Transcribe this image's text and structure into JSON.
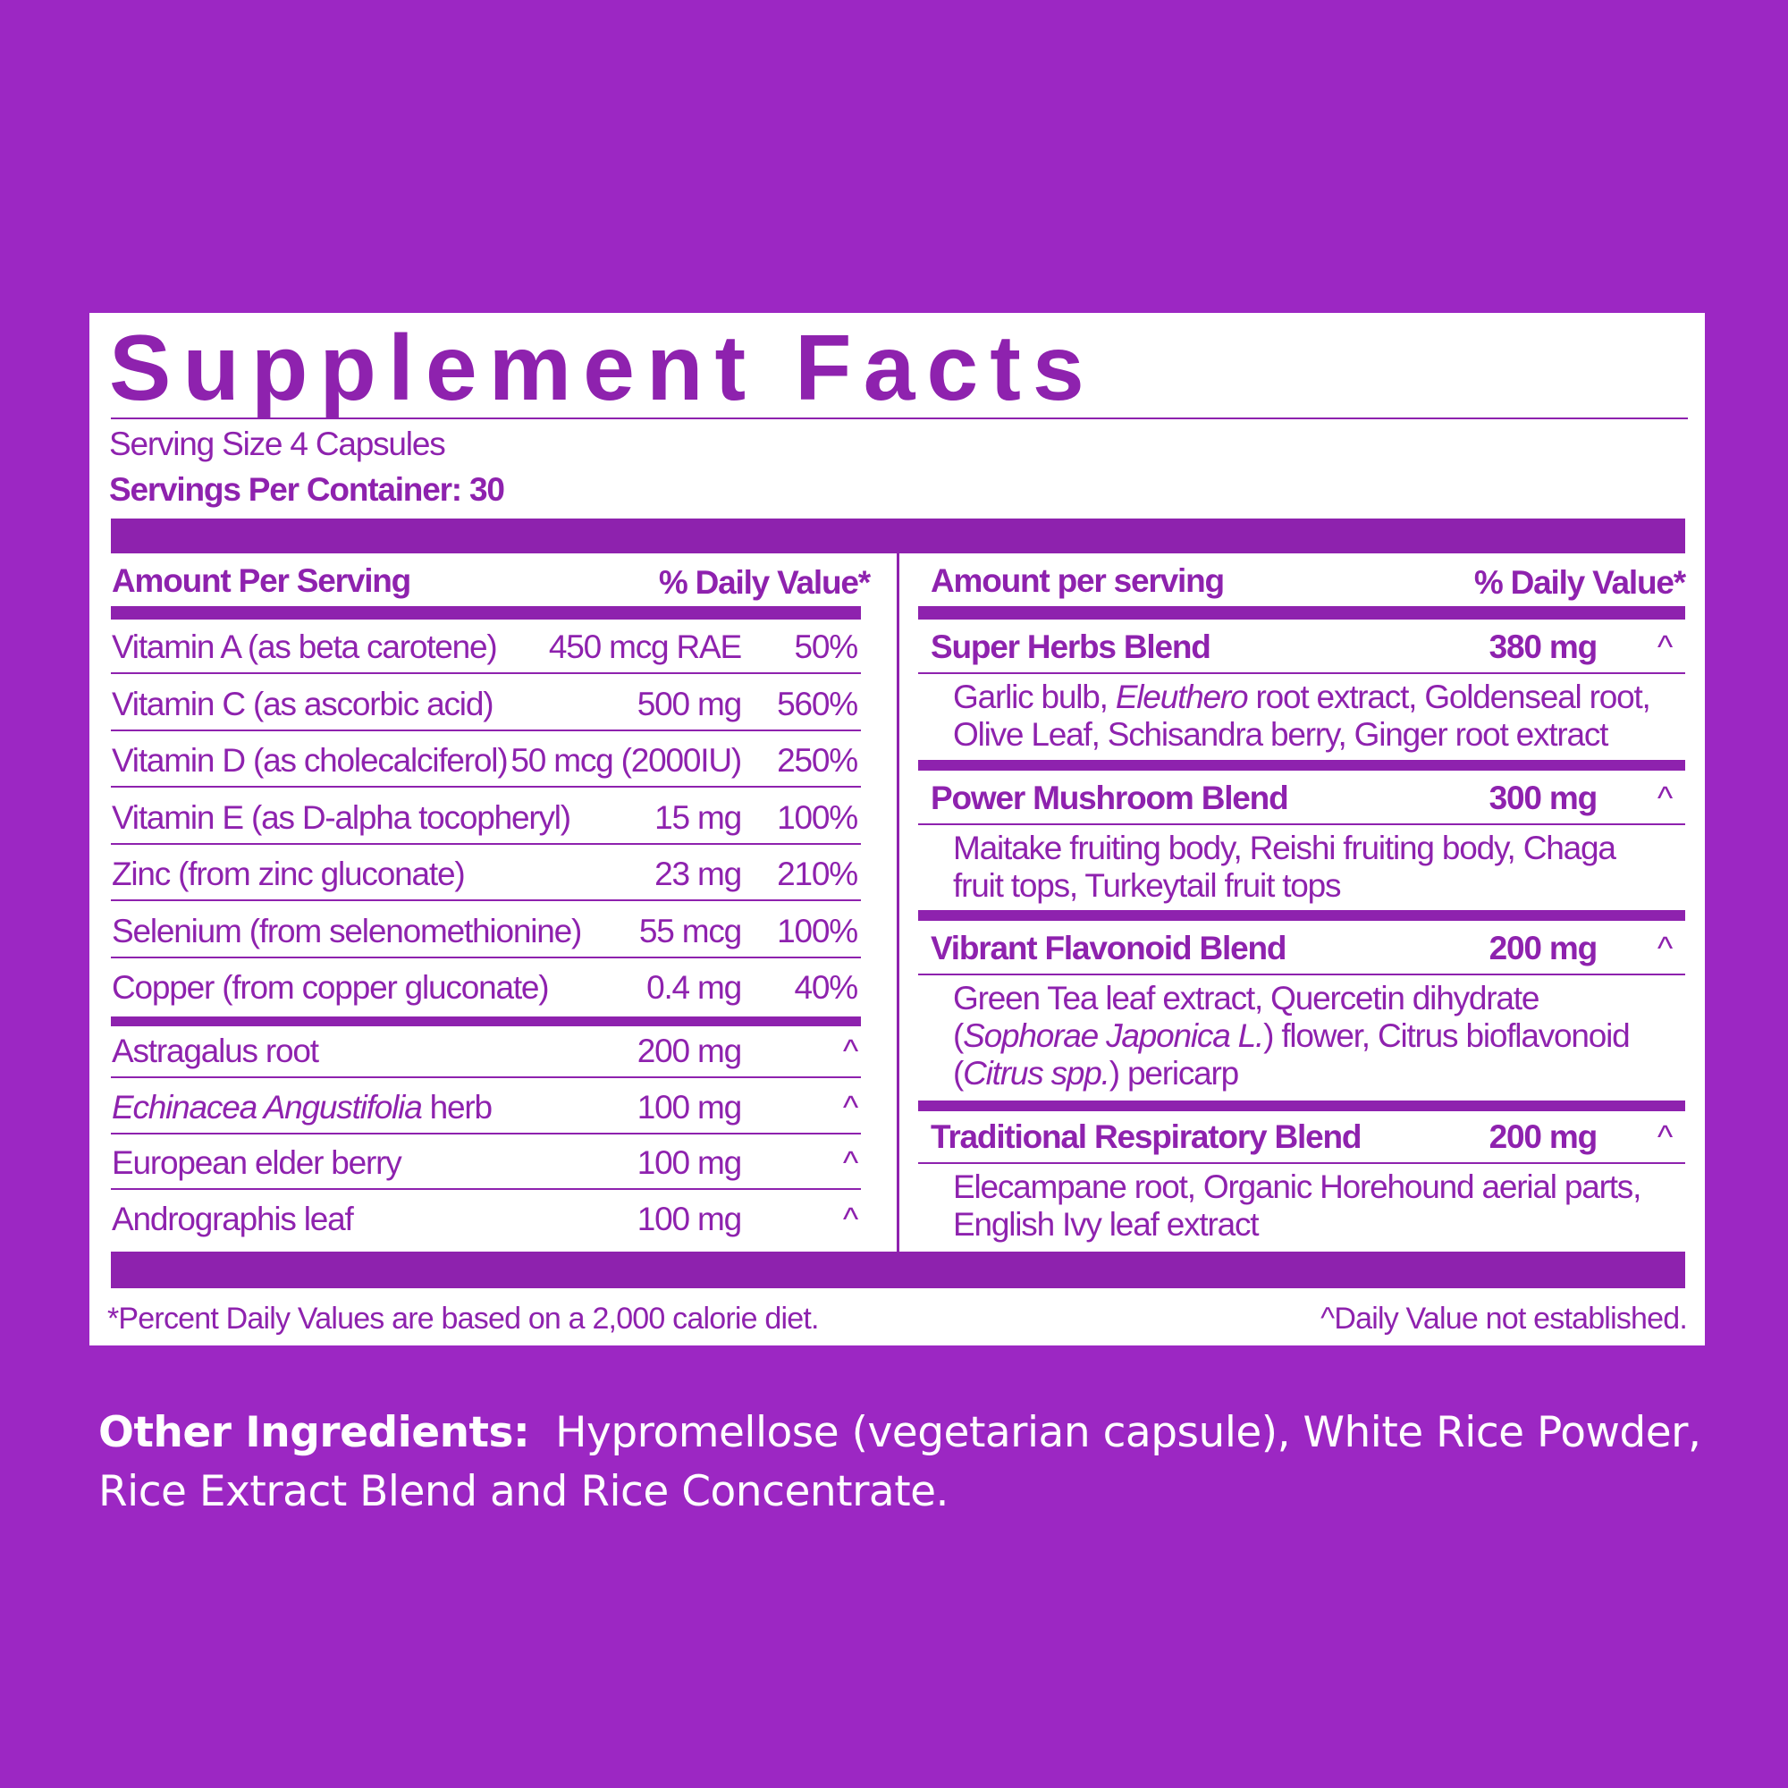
{
  "colors": {
    "background": "#9C27C3",
    "accent": "#8E22AE",
    "panel": "#FFFFFF"
  },
  "title": "Supplement Facts",
  "serving_size": "Serving Size 4 Capsules",
  "servings_per_container": "Servings Per Container: 30",
  "left": {
    "header_amount": "Amount Per Serving",
    "header_dv": "% Daily Value*",
    "vitamins": [
      {
        "name": [
          {
            "t": "Vitamin A (as beta carotene)"
          }
        ],
        "amount": "450 mcg RAE",
        "dv": "50%"
      },
      {
        "name": [
          {
            "t": "Vitamin C (as ascorbic acid)"
          }
        ],
        "amount": "500 mg",
        "dv": "560%"
      },
      {
        "name": [
          {
            "t": "Vitamin D (as cholecalciferol)"
          }
        ],
        "amount": "50 mcg (2000IU)",
        "dv": "250%"
      },
      {
        "name": [
          {
            "t": "Vitamin E (as D-alpha tocopheryl)"
          }
        ],
        "amount": "15 mg",
        "dv": "100%"
      },
      {
        "name": [
          {
            "t": "Zinc (from zinc gluconate)"
          }
        ],
        "amount": "23 mg",
        "dv": "210%"
      },
      {
        "name": [
          {
            "t": "Selenium (from selenomethionine)"
          }
        ],
        "amount": "55 mcg",
        "dv": "100%"
      },
      {
        "name": [
          {
            "t": "Copper (from copper gluconate)"
          }
        ],
        "amount": "0.4 mg",
        "dv": "40%"
      }
    ],
    "herbs": [
      {
        "name": [
          {
            "t": "Astragalus root"
          }
        ],
        "amount": "200 mg",
        "dv": "^"
      },
      {
        "name": [
          {
            "t": "Echinacea Angustifolia",
            "i": true
          },
          {
            "t": " herb"
          }
        ],
        "amount": "100 mg",
        "dv": "^"
      },
      {
        "name": [
          {
            "t": "European elder berry"
          }
        ],
        "amount": "100 mg",
        "dv": "^"
      },
      {
        "name": [
          {
            "t": "Andrographis leaf"
          }
        ],
        "amount": "100 mg",
        "dv": "^"
      }
    ]
  },
  "right": {
    "header_amount": "Amount per serving",
    "header_dv": "% Daily Value*",
    "blends": [
      {
        "name": "Super Herbs Blend",
        "amount": "380 mg",
        "dv": "^",
        "lines": [
          [
            {
              "t": "Garlic bulb, "
            },
            {
              "t": "Eleuthero",
              "i": true
            },
            {
              "t": " root extract, Goldenseal root,"
            }
          ],
          [
            {
              "t": "Olive Leaf, Schisandra berry, Ginger root extract"
            }
          ]
        ]
      },
      {
        "name": "Power Mushroom Blend",
        "amount": "300 mg",
        "dv": "^",
        "lines": [
          [
            {
              "t": "Maitake fruiting body, Reishi fruiting body, Chaga"
            }
          ],
          [
            {
              "t": "fruit tops, Turkeytail fruit tops"
            }
          ]
        ]
      },
      {
        "name": "Vibrant Flavonoid Blend",
        "amount": "200 mg",
        "dv": "^",
        "lines": [
          [
            {
              "t": "Green Tea leaf extract, Quercetin dihydrate"
            }
          ],
          [
            {
              "t": "("
            },
            {
              "t": "Sophorae Japonica L.",
              "i": true
            },
            {
              "t": ") flower, Citrus bioflavonoid"
            }
          ],
          [
            {
              "t": "("
            },
            {
              "t": "Citrus spp.",
              "i": true
            },
            {
              "t": ") pericarp"
            }
          ]
        ]
      },
      {
        "name": "Traditional Respiratory Blend",
        "amount": "200 mg",
        "dv": "^",
        "lines": [
          [
            {
              "t": "Elecampane root, Organic Horehound aerial parts,"
            }
          ],
          [
            {
              "t": "English Ivy leaf extract"
            }
          ]
        ]
      }
    ]
  },
  "footnote_left": "*Percent Daily Values are based on a 2,000 calorie diet.",
  "footnote_right": "^Daily Value not established.",
  "other_ingredients": {
    "label": "Other Ingredients:",
    "text": "Hypromellose (vegetarian capsule), White Rice Powder, Rice Extract Blend and Rice Concentrate."
  }
}
